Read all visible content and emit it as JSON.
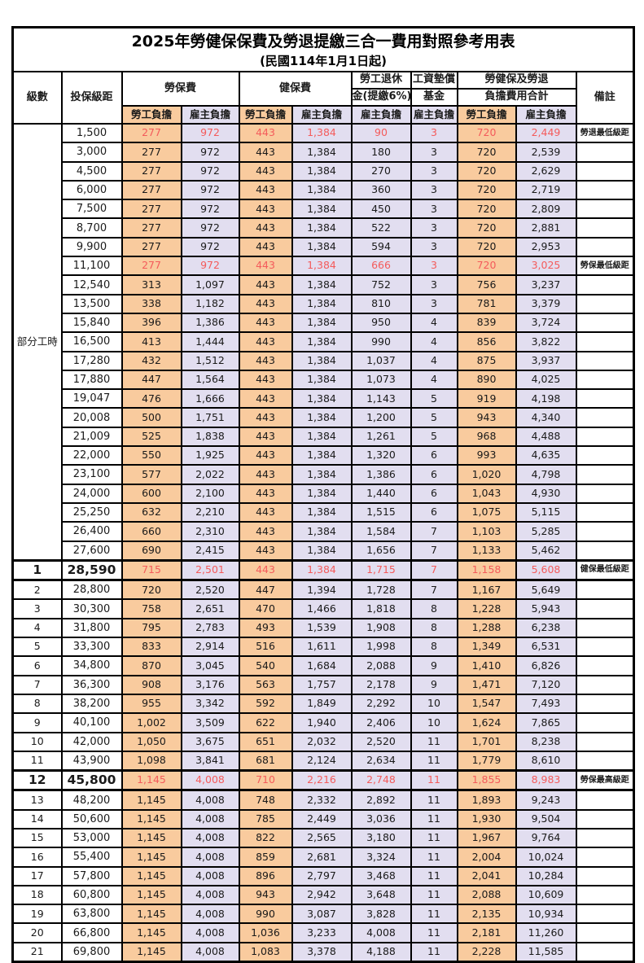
{
  "title": "2025年勞健保保費及勞退提繳三合一費用對照參考用表",
  "subtitle": "(民國114年1月1日起)",
  "colors": {
    "employee_burden_bg": "#F9CB9E",
    "employer_burden_bg": "#E2DEF0",
    "highlight_text": "#F45B5B",
    "border": "#000000"
  },
  "header": {
    "level": "級數",
    "bracket": "投保級距",
    "labor_insurance": "勞保費",
    "health_insurance": "健保費",
    "pension_line1": "勞工退休",
    "pension_line2": "金(提繳6%)",
    "wage_fund_line1": "工資墊償",
    "wage_fund_line2": "基金",
    "total_line1": "勞健保及勞退",
    "total_line2": "負擔費用合計",
    "remark": "備註",
    "employee_burden": "勞工負擔",
    "employer_burden": "雇主負擔"
  },
  "part_time": {
    "label": "部分工時",
    "rowspan": 23
  },
  "column_keys": [
    "labor_employee",
    "labor_employer",
    "health_employee",
    "health_employer",
    "pension_employer",
    "wage_fund_employer",
    "total_employee",
    "total_employer"
  ],
  "rows": [
    {
      "level": null,
      "bracket": "1,500",
      "cells": [
        "277",
        "972",
        "443",
        "1,384",
        "90",
        "3",
        "720",
        "2,449"
      ],
      "remark": "勞退最低級距",
      "red": true,
      "big": false
    },
    {
      "level": null,
      "bracket": "3,000",
      "cells": [
        "277",
        "972",
        "443",
        "1,384",
        "180",
        "3",
        "720",
        "2,539"
      ],
      "remark": "",
      "red": false,
      "big": false
    },
    {
      "level": null,
      "bracket": "4,500",
      "cells": [
        "277",
        "972",
        "443",
        "1,384",
        "270",
        "3",
        "720",
        "2,629"
      ],
      "remark": "",
      "red": false,
      "big": false
    },
    {
      "level": null,
      "bracket": "6,000",
      "cells": [
        "277",
        "972",
        "443",
        "1,384",
        "360",
        "3",
        "720",
        "2,719"
      ],
      "remark": "",
      "red": false,
      "big": false
    },
    {
      "level": null,
      "bracket": "7,500",
      "cells": [
        "277",
        "972",
        "443",
        "1,384",
        "450",
        "3",
        "720",
        "2,809"
      ],
      "remark": "",
      "red": false,
      "big": false
    },
    {
      "level": null,
      "bracket": "8,700",
      "cells": [
        "277",
        "972",
        "443",
        "1,384",
        "522",
        "3",
        "720",
        "2,881"
      ],
      "remark": "",
      "red": false,
      "big": false
    },
    {
      "level": null,
      "bracket": "9,900",
      "cells": [
        "277",
        "972",
        "443",
        "1,384",
        "594",
        "3",
        "720",
        "2,953"
      ],
      "remark": "",
      "red": false,
      "big": false
    },
    {
      "level": null,
      "bracket": "11,100",
      "cells": [
        "277",
        "972",
        "443",
        "1,384",
        "666",
        "3",
        "720",
        "3,025"
      ],
      "remark": "勞保最低級距",
      "red": true,
      "big": false
    },
    {
      "level": null,
      "bracket": "12,540",
      "cells": [
        "313",
        "1,097",
        "443",
        "1,384",
        "752",
        "3",
        "756",
        "3,237"
      ],
      "remark": "",
      "red": false,
      "big": false
    },
    {
      "level": null,
      "bracket": "13,500",
      "cells": [
        "338",
        "1,182",
        "443",
        "1,384",
        "810",
        "3",
        "781",
        "3,379"
      ],
      "remark": "",
      "red": false,
      "big": false
    },
    {
      "level": null,
      "bracket": "15,840",
      "cells": [
        "396",
        "1,386",
        "443",
        "1,384",
        "950",
        "4",
        "839",
        "3,724"
      ],
      "remark": "",
      "red": false,
      "big": false
    },
    {
      "level": null,
      "bracket": "16,500",
      "cells": [
        "413",
        "1,444",
        "443",
        "1,384",
        "990",
        "4",
        "856",
        "3,822"
      ],
      "remark": "",
      "red": false,
      "big": false
    },
    {
      "level": null,
      "bracket": "17,280",
      "cells": [
        "432",
        "1,512",
        "443",
        "1,384",
        "1,037",
        "4",
        "875",
        "3,937"
      ],
      "remark": "",
      "red": false,
      "big": false
    },
    {
      "level": null,
      "bracket": "17,880",
      "cells": [
        "447",
        "1,564",
        "443",
        "1,384",
        "1,073",
        "4",
        "890",
        "4,025"
      ],
      "remark": "",
      "red": false,
      "big": false
    },
    {
      "level": null,
      "bracket": "19,047",
      "cells": [
        "476",
        "1,666",
        "443",
        "1,384",
        "1,143",
        "5",
        "919",
        "4,198"
      ],
      "remark": "",
      "red": false,
      "big": false
    },
    {
      "level": null,
      "bracket": "20,008",
      "cells": [
        "500",
        "1,751",
        "443",
        "1,384",
        "1,200",
        "5",
        "943",
        "4,340"
      ],
      "remark": "",
      "red": false,
      "big": false
    },
    {
      "level": null,
      "bracket": "21,009",
      "cells": [
        "525",
        "1,838",
        "443",
        "1,384",
        "1,261",
        "5",
        "968",
        "4,488"
      ],
      "remark": "",
      "red": false,
      "big": false
    },
    {
      "level": null,
      "bracket": "22,000",
      "cells": [
        "550",
        "1,925",
        "443",
        "1,384",
        "1,320",
        "6",
        "993",
        "4,635"
      ],
      "remark": "",
      "red": false,
      "big": false
    },
    {
      "level": null,
      "bracket": "23,100",
      "cells": [
        "577",
        "2,022",
        "443",
        "1,384",
        "1,386",
        "6",
        "1,020",
        "4,798"
      ],
      "remark": "",
      "red": false,
      "big": false
    },
    {
      "level": null,
      "bracket": "24,000",
      "cells": [
        "600",
        "2,100",
        "443",
        "1,384",
        "1,440",
        "6",
        "1,043",
        "4,930"
      ],
      "remark": "",
      "red": false,
      "big": false
    },
    {
      "level": null,
      "bracket": "25,250",
      "cells": [
        "632",
        "2,210",
        "443",
        "1,384",
        "1,515",
        "6",
        "1,075",
        "5,115"
      ],
      "remark": "",
      "red": false,
      "big": false
    },
    {
      "level": null,
      "bracket": "26,400",
      "cells": [
        "660",
        "2,310",
        "443",
        "1,384",
        "1,584",
        "7",
        "1,103",
        "5,285"
      ],
      "remark": "",
      "red": false,
      "big": false
    },
    {
      "level": null,
      "bracket": "27,600",
      "cells": [
        "690",
        "2,415",
        "443",
        "1,384",
        "1,656",
        "7",
        "1,133",
        "5,462"
      ],
      "remark": "",
      "red": false,
      "big": false
    },
    {
      "level": "1",
      "bracket": "28,590",
      "cells": [
        "715",
        "2,501",
        "443",
        "1,384",
        "1,715",
        "7",
        "1,158",
        "5,608"
      ],
      "remark": "健保最低級距",
      "red": true,
      "big": true
    },
    {
      "level": "2",
      "bracket": "28,800",
      "cells": [
        "720",
        "2,520",
        "447",
        "1,394",
        "1,728",
        "7",
        "1,167",
        "5,649"
      ],
      "remark": "",
      "red": false,
      "big": false
    },
    {
      "level": "3",
      "bracket": "30,300",
      "cells": [
        "758",
        "2,651",
        "470",
        "1,466",
        "1,818",
        "8",
        "1,228",
        "5,943"
      ],
      "remark": "",
      "red": false,
      "big": false
    },
    {
      "level": "4",
      "bracket": "31,800",
      "cells": [
        "795",
        "2,783",
        "493",
        "1,539",
        "1,908",
        "8",
        "1,288",
        "6,238"
      ],
      "remark": "",
      "red": false,
      "big": false
    },
    {
      "level": "5",
      "bracket": "33,300",
      "cells": [
        "833",
        "2,914",
        "516",
        "1,611",
        "1,998",
        "8",
        "1,349",
        "6,531"
      ],
      "remark": "",
      "red": false,
      "big": false
    },
    {
      "level": "6",
      "bracket": "34,800",
      "cells": [
        "870",
        "3,045",
        "540",
        "1,684",
        "2,088",
        "9",
        "1,410",
        "6,826"
      ],
      "remark": "",
      "red": false,
      "big": false
    },
    {
      "level": "7",
      "bracket": "36,300",
      "cells": [
        "908",
        "3,176",
        "563",
        "1,757",
        "2,178",
        "9",
        "1,471",
        "7,120"
      ],
      "remark": "",
      "red": false,
      "big": false
    },
    {
      "level": "8",
      "bracket": "38,200",
      "cells": [
        "955",
        "3,342",
        "592",
        "1,849",
        "2,292",
        "10",
        "1,547",
        "7,493"
      ],
      "remark": "",
      "red": false,
      "big": false
    },
    {
      "level": "9",
      "bracket": "40,100",
      "cells": [
        "1,002",
        "3,509",
        "622",
        "1,940",
        "2,406",
        "10",
        "1,624",
        "7,865"
      ],
      "remark": "",
      "red": false,
      "big": false
    },
    {
      "level": "10",
      "bracket": "42,000",
      "cells": [
        "1,050",
        "3,675",
        "651",
        "2,032",
        "2,520",
        "11",
        "1,701",
        "8,238"
      ],
      "remark": "",
      "red": false,
      "big": false
    },
    {
      "level": "11",
      "bracket": "43,900",
      "cells": [
        "1,098",
        "3,841",
        "681",
        "2,124",
        "2,634",
        "11",
        "1,779",
        "8,610"
      ],
      "remark": "",
      "red": false,
      "big": false
    },
    {
      "level": "12",
      "bracket": "45,800",
      "cells": [
        "1,145",
        "4,008",
        "710",
        "2,216",
        "2,748",
        "11",
        "1,855",
        "8,983"
      ],
      "remark": "勞保最高級距",
      "red": true,
      "big": true
    },
    {
      "level": "13",
      "bracket": "48,200",
      "cells": [
        "1,145",
        "4,008",
        "748",
        "2,332",
        "2,892",
        "11",
        "1,893",
        "9,243"
      ],
      "remark": "",
      "red": false,
      "big": false
    },
    {
      "level": "14",
      "bracket": "50,600",
      "cells": [
        "1,145",
        "4,008",
        "785",
        "2,449",
        "3,036",
        "11",
        "1,930",
        "9,504"
      ],
      "remark": "",
      "red": false,
      "big": false
    },
    {
      "level": "15",
      "bracket": "53,000",
      "cells": [
        "1,145",
        "4,008",
        "822",
        "2,565",
        "3,180",
        "11",
        "1,967",
        "9,764"
      ],
      "remark": "",
      "red": false,
      "big": false
    },
    {
      "level": "16",
      "bracket": "55,400",
      "cells": [
        "1,145",
        "4,008",
        "859",
        "2,681",
        "3,324",
        "11",
        "2,004",
        "10,024"
      ],
      "remark": "",
      "red": false,
      "big": false
    },
    {
      "level": "17",
      "bracket": "57,800",
      "cells": [
        "1,145",
        "4,008",
        "896",
        "2,797",
        "3,468",
        "11",
        "2,041",
        "10,284"
      ],
      "remark": "",
      "red": false,
      "big": false
    },
    {
      "level": "18",
      "bracket": "60,800",
      "cells": [
        "1,145",
        "4,008",
        "943",
        "2,942",
        "3,648",
        "11",
        "2,088",
        "10,609"
      ],
      "remark": "",
      "red": false,
      "big": false
    },
    {
      "level": "19",
      "bracket": "63,800",
      "cells": [
        "1,145",
        "4,008",
        "990",
        "3,087",
        "3,828",
        "11",
        "2,135",
        "10,934"
      ],
      "remark": "",
      "red": false,
      "big": false
    },
    {
      "level": "20",
      "bracket": "66,800",
      "cells": [
        "1,145",
        "4,008",
        "1,036",
        "3,233",
        "4,008",
        "11",
        "2,181",
        "11,260"
      ],
      "remark": "",
      "red": false,
      "big": false
    },
    {
      "level": "21",
      "bracket": "69,800",
      "cells": [
        "1,145",
        "4,008",
        "1,083",
        "3,378",
        "4,188",
        "11",
        "2,228",
        "11,585"
      ],
      "remark": "",
      "red": false,
      "big": false
    }
  ]
}
